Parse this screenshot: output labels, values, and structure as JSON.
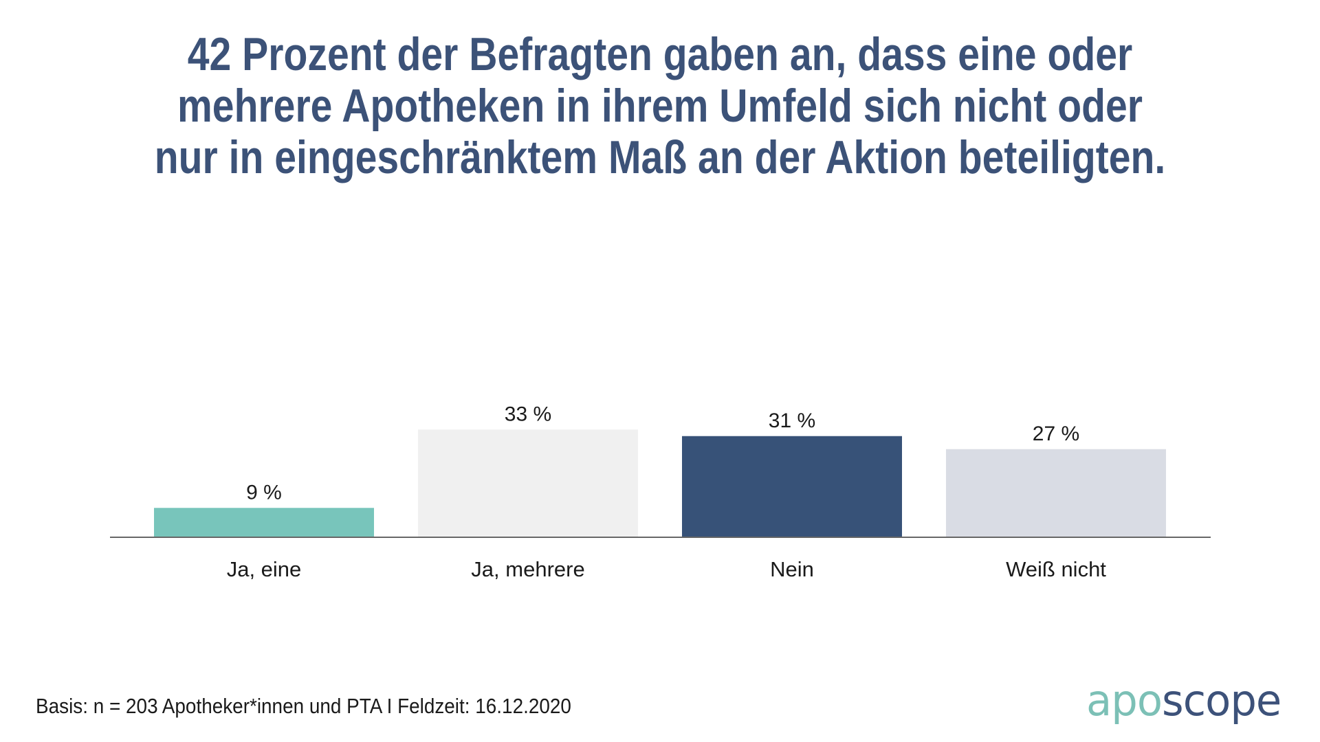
{
  "title": {
    "lines": [
      "42 Prozent der Befragten gaben an, dass eine oder",
      "mehrere Apotheken in ihrem Umfeld sich nicht oder",
      "nur in eingeschränktem Maß an der Aktion beteiligten."
    ]
  },
  "footer": {
    "note": "Basis: n = 203 Apotheker*innen und PTA I Feldzeit: 16.12.2020"
  },
  "logo": {
    "part1": "apo",
    "part2": "scope",
    "color1": "#7cc0b6",
    "color2": "#3d527a"
  },
  "chart_data": {
    "type": "bar",
    "title": "42 Prozent der Befragten gaben an, dass eine oder mehrere Apotheken in ihrem Umfeld sich nicht oder nur in eingeschränktem Maß an der Aktion beteiligten.",
    "xlabel": "",
    "ylabel": "",
    "ylim": [
      0,
      35
    ],
    "grid": false,
    "legend": "none",
    "unit": "%",
    "categories": [
      "Ja, eine",
      "Ja, mehrere",
      "Nein",
      "Weiß nicht"
    ],
    "values": [
      9,
      33,
      31,
      27
    ],
    "value_labels": [
      "9 %",
      "33 %",
      "31 %",
      "27 %"
    ],
    "colors": [
      "#78c5bb",
      "#f0f0f0",
      "#375278",
      "#d9dce4"
    ],
    "axis_color": "#666666"
  }
}
